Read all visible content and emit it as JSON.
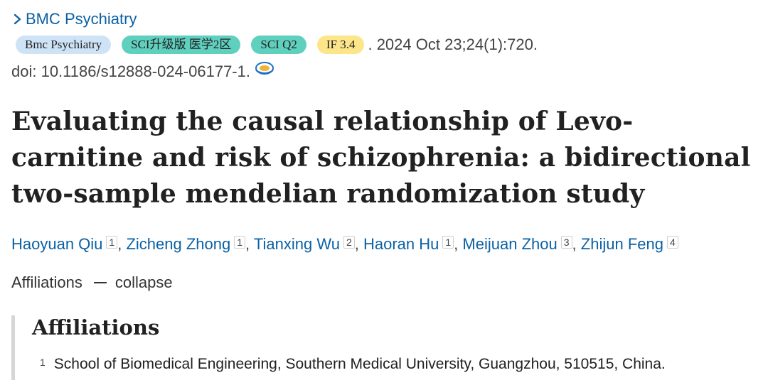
{
  "journal": {
    "name": "BMC Psychiatry"
  },
  "tags": {
    "journal_abbrev": "Bmc Psychiatry",
    "sci_rank": "SCI升级版 医学2区",
    "sci_quartile": "SCI Q2",
    "impact_factor": "IF 3.4"
  },
  "citation": ". 2024 Oct 23;24(1):720.",
  "doi": "doi: 10.1186/s12888-024-06177-1.",
  "title": "Evaluating the causal relationship of Levo-carnitine and risk of schizophrenia: a bidirectional two-sample mendelian randomization study",
  "authors": [
    {
      "name": "Haoyuan Qiu",
      "aff": "1"
    },
    {
      "name": "Zicheng Zhong",
      "aff": "1"
    },
    {
      "name": "Tianxing Wu",
      "aff": "2"
    },
    {
      "name": "Haoran Hu",
      "aff": "1"
    },
    {
      "name": "Meijuan Zhou",
      "aff": "3"
    },
    {
      "name": "Zhijun Feng",
      "aff": "4"
    }
  ],
  "author_separator": ",",
  "affiliations_toggle": {
    "label": "Affiliations",
    "action": "collapse"
  },
  "affiliations_panel": {
    "heading": "Affiliations",
    "items": [
      {
        "num": "1",
        "text": "School of Biomedical Engineering, Southern Medical University, Guangzhou, 510515, China."
      }
    ]
  },
  "colors": {
    "link": "#0b61a4",
    "tag_journal": "#cfe3f6",
    "tag_sci": "#5fcfbe",
    "tag_if": "#fde58a",
    "panel_border": "#d6d6d6"
  },
  "icons": {
    "journal_chevron": "chevron-right-icon",
    "doi": "doi-link-icon"
  }
}
